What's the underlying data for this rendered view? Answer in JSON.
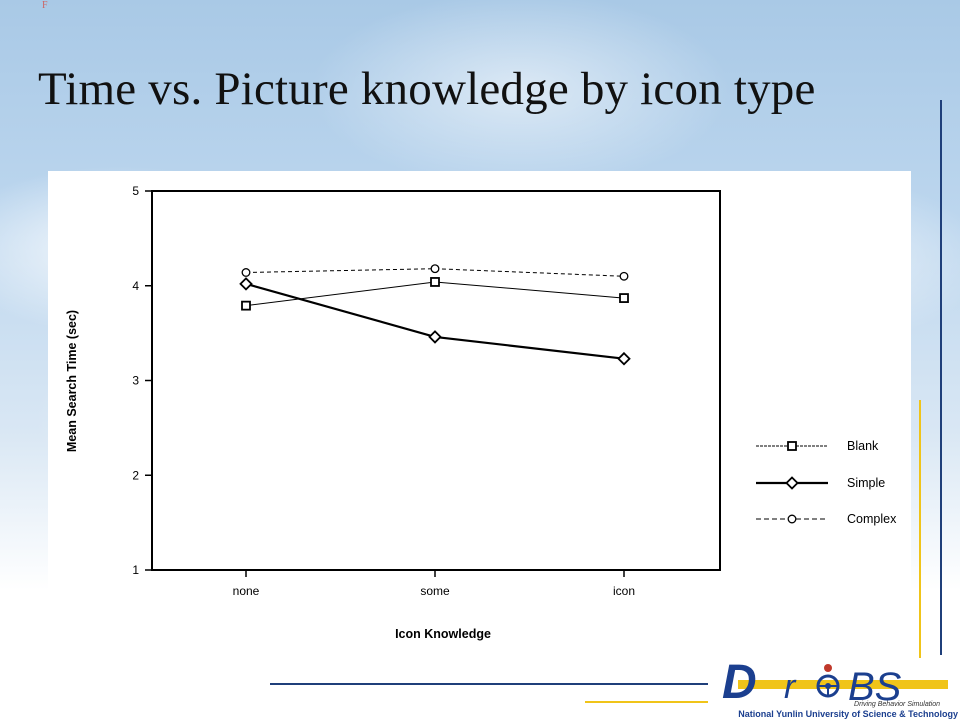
{
  "slide": {
    "title": "Time vs. Picture knowledge by icon type",
    "corner_mark": "F"
  },
  "colors": {
    "accent_blue": "#1f3f7a",
    "accent_yellow": "#f0c419",
    "logo_blue": "#1b3f8f",
    "logo_red": "#c0392b"
  },
  "logo": {
    "text_d": "D",
    "text_r": "r",
    "text_bs": "BS",
    "tagline": "Driving Behavior Simulation",
    "institution": "National Yunlin University of Science & Technology"
  },
  "chart_data": {
    "type": "line",
    "title": "",
    "xlabel": "Icon Knowledge",
    "ylabel": "Mean Search Time (sec)",
    "categories": [
      "none",
      "some",
      "icon"
    ],
    "ylim": [
      1,
      5
    ],
    "yticks": [
      1,
      2,
      3,
      4,
      5
    ],
    "grid": false,
    "legend_position": "right",
    "series": [
      {
        "name": "Blank",
        "values": [
          3.79,
          4.04,
          3.87
        ],
        "marker": "square",
        "line": "thin-solid",
        "stroke_width": 1
      },
      {
        "name": "Simple",
        "values": [
          4.02,
          3.46,
          3.23
        ],
        "marker": "diamond",
        "line": "thick-solid",
        "stroke_width": 2.2
      },
      {
        "name": "Complex",
        "values": [
          4.14,
          4.18,
          4.1
        ],
        "marker": "circle",
        "line": "dashed",
        "stroke_width": 1
      }
    ]
  }
}
